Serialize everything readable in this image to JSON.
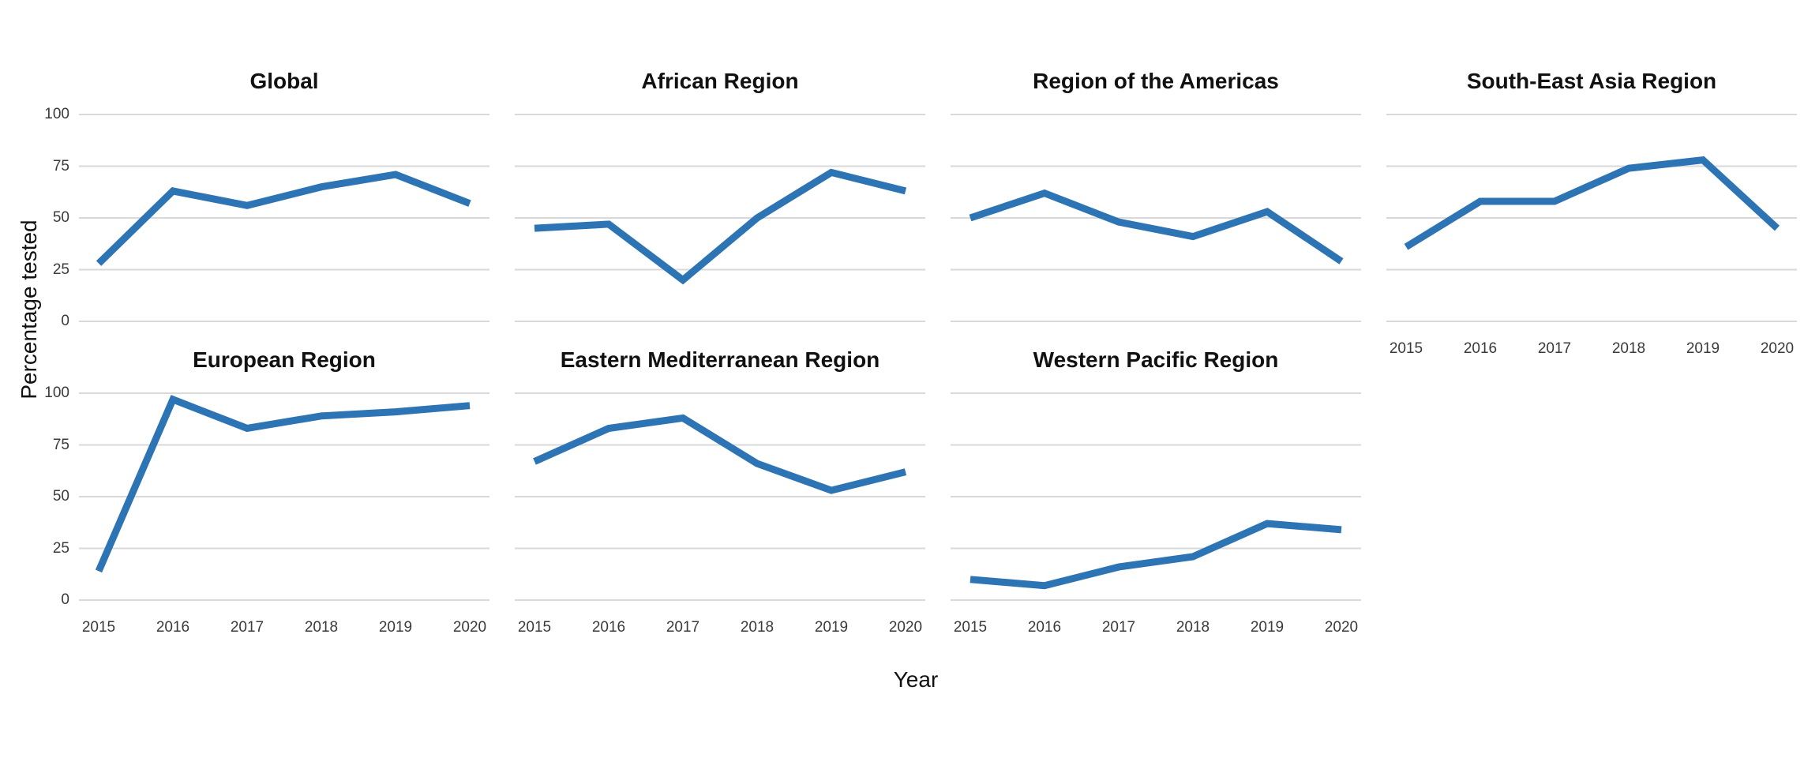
{
  "chart_data": {
    "type": "line",
    "title": "",
    "xlabel": "Year",
    "ylabel": "Percentage tested",
    "categories": [
      "2015",
      "2016",
      "2017",
      "2018",
      "2019",
      "2020"
    ],
    "ylim": [
      0,
      100
    ],
    "yticks": [
      0,
      25,
      50,
      75,
      100
    ],
    "grid": "horizontal-only",
    "legend": "none",
    "line_color": "#2d74b5",
    "gridline_color": "#d9d9d9",
    "text_color": "#111111",
    "tick_color": "#3a3a3a",
    "series": [
      {
        "name": "Global",
        "row": 0,
        "col": 0,
        "show_x_axis": false,
        "values": [
          28,
          63,
          56,
          65,
          71,
          57
        ]
      },
      {
        "name": "African Region",
        "row": 0,
        "col": 1,
        "show_x_axis": false,
        "values": [
          45,
          47,
          20,
          50,
          72,
          63
        ]
      },
      {
        "name": "Region of the Americas",
        "row": 0,
        "col": 2,
        "show_x_axis": false,
        "values": [
          50,
          62,
          48,
          41,
          53,
          29
        ]
      },
      {
        "name": "South-East Asia Region",
        "row": 0,
        "col": 3,
        "show_x_axis": true,
        "values": [
          36,
          58,
          58,
          74,
          78,
          45
        ]
      },
      {
        "name": "European Region",
        "row": 1,
        "col": 0,
        "show_x_axis": true,
        "values": [
          14,
          97,
          83,
          89,
          91,
          94
        ]
      },
      {
        "name": "Eastern Mediterranean Region",
        "row": 1,
        "col": 1,
        "show_x_axis": true,
        "values": [
          67,
          83,
          88,
          66,
          53,
          62
        ]
      },
      {
        "name": "Western Pacific Region",
        "row": 1,
        "col": 2,
        "show_x_axis": true,
        "values": [
          10,
          7,
          16,
          21,
          37,
          34
        ]
      }
    ]
  }
}
